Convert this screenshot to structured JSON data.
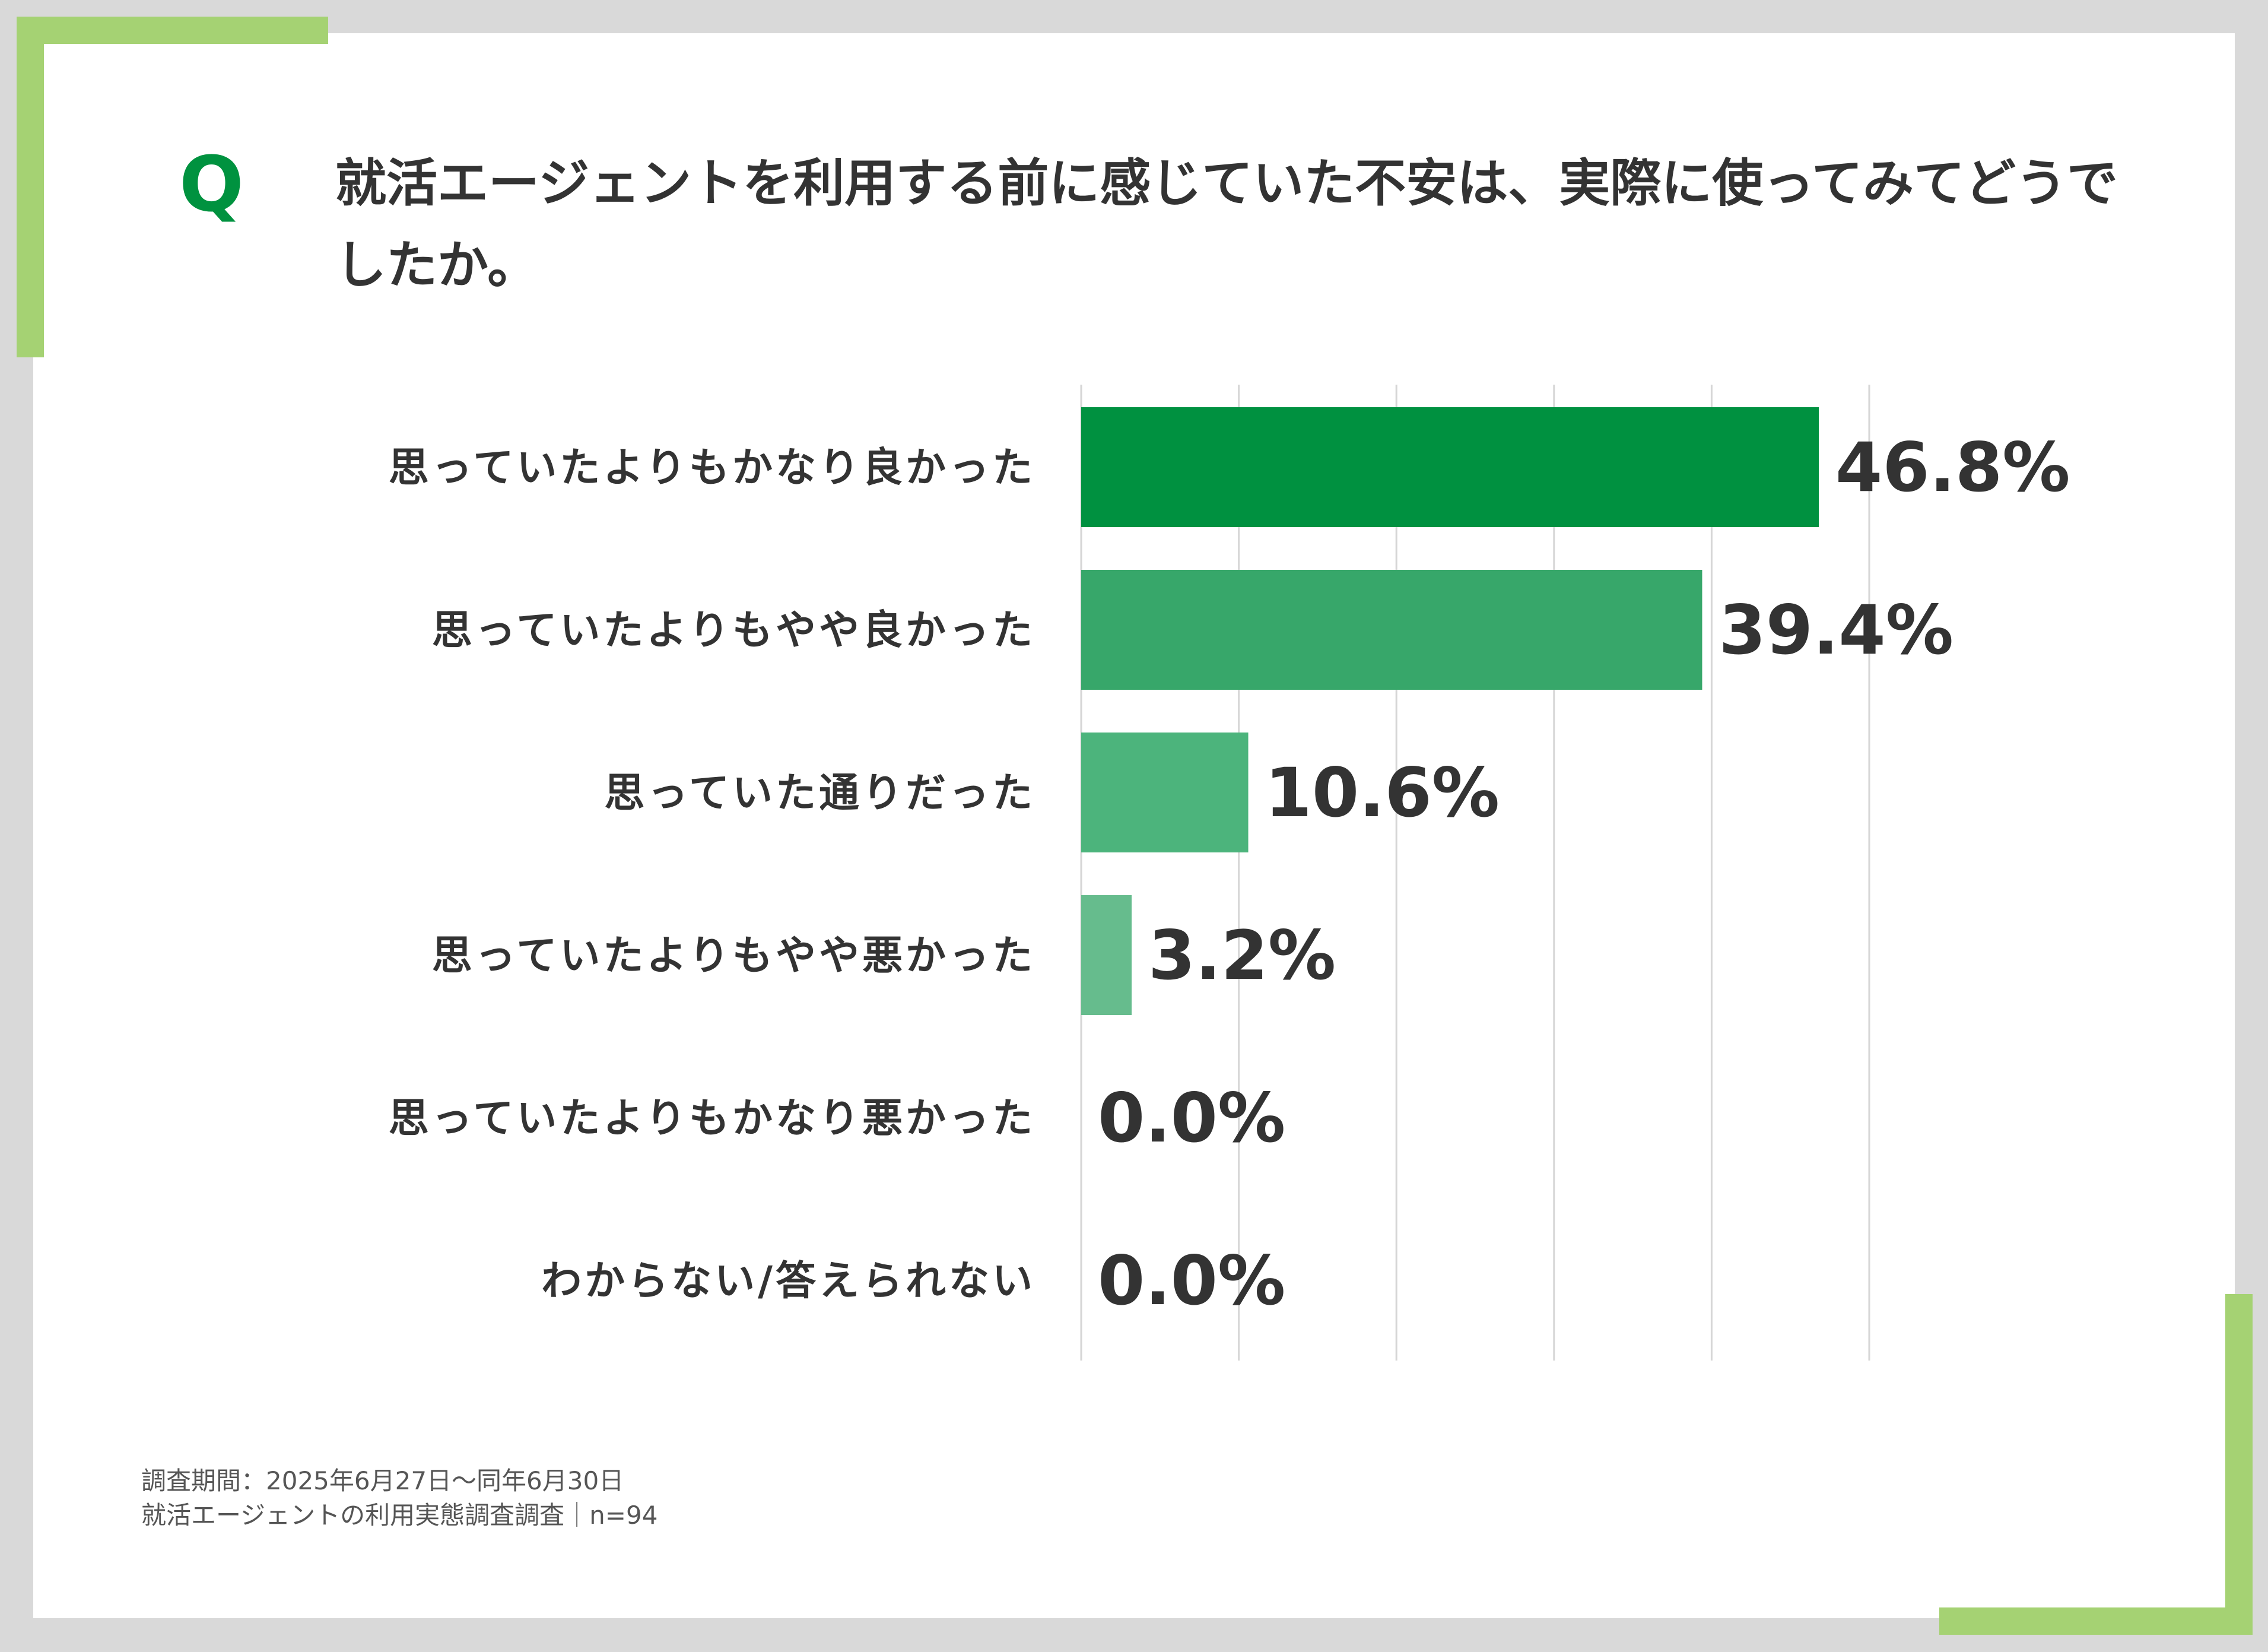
{
  "question": {
    "mark": "Q",
    "text": "就活エージェントを利用する前に感じていた不安は、実際に使ってみてどうでしたか。"
  },
  "footer": {
    "period": "調査期間：2025年6月27日〜同年6月30日",
    "source": "就活エージェントの利用実態調査調査｜n=94"
  },
  "colors": {
    "accent": "#a5d273",
    "q_mark": "#00923f",
    "bars": [
      "#009140",
      "#37a76a",
      "#4cb47c",
      "#66bc8d",
      "#66bc8d",
      "#66bc8d"
    ]
  },
  "chart_data": {
    "type": "bar",
    "orientation": "horizontal",
    "categories": [
      "思っていたよりもかなり良かった",
      "思っていたよりもやや良かった",
      "思っていた通りだった",
      "思っていたよりもやや悪かった",
      "思っていたよりもかなり悪かった",
      "わからない/答えられない"
    ],
    "values": [
      46.8,
      39.4,
      10.6,
      3.2,
      0.0,
      0.0
    ],
    "value_labels": [
      "46.8%",
      "39.4%",
      "10.6%",
      "3.2%",
      "0.0%",
      "0.0%"
    ],
    "unit": "%",
    "xlim": [
      0,
      50
    ],
    "grid_step": 10,
    "grid": true,
    "legend": "none"
  }
}
